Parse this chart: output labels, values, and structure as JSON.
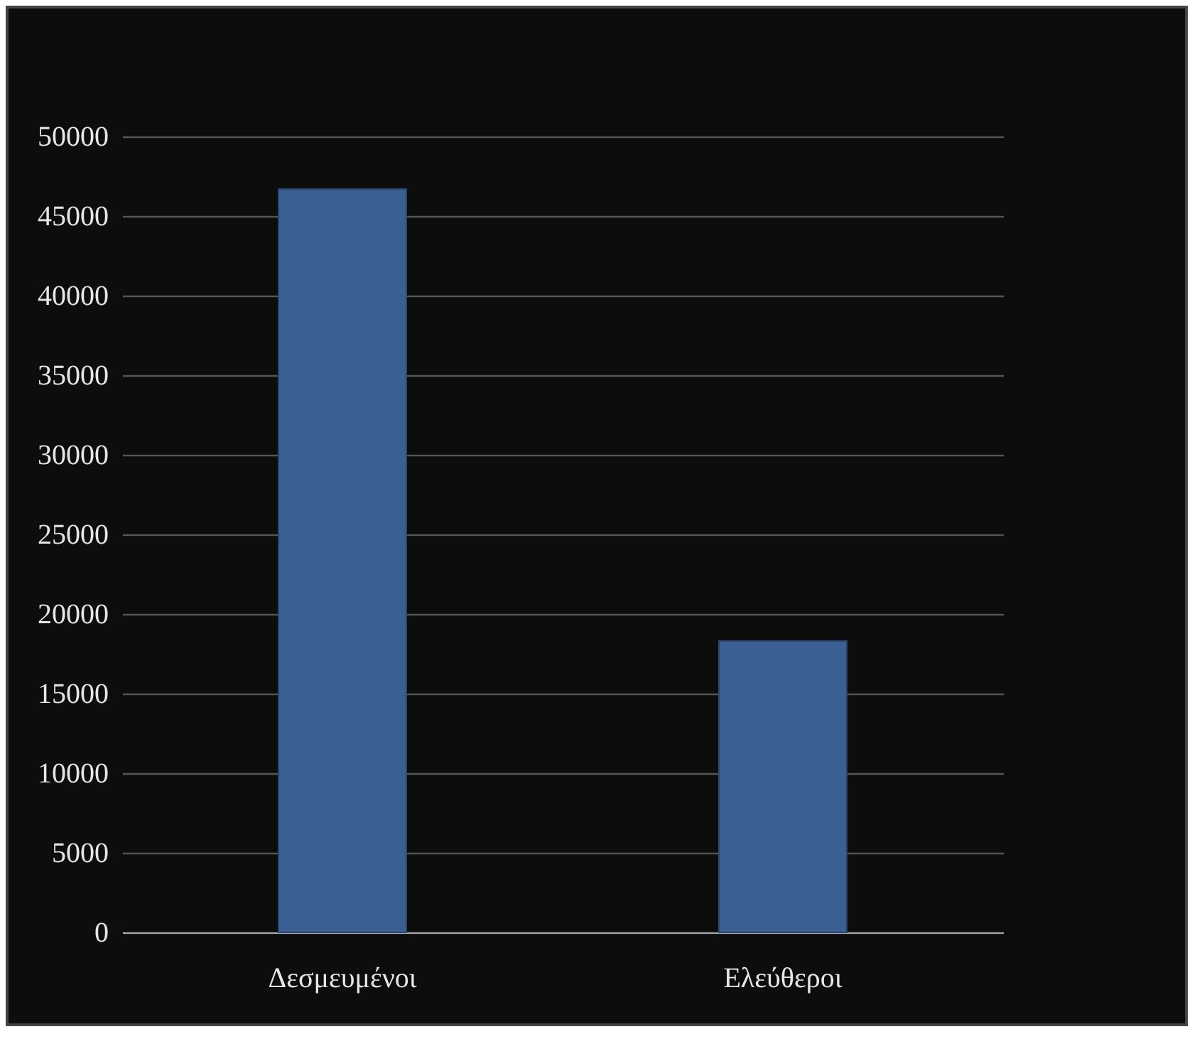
{
  "chart_data": {
    "type": "bar",
    "categories": [
      "Δεσμευμένοι",
      "Ελεύθεροι"
    ],
    "values": [
      46700,
      18300
    ],
    "color": "#3a5f93",
    "ylim": [
      0,
      50000
    ],
    "yticks": [
      0,
      5000,
      10000,
      15000,
      20000,
      25000,
      30000,
      35000,
      40000,
      45000,
      50000
    ],
    "grid": "y"
  }
}
